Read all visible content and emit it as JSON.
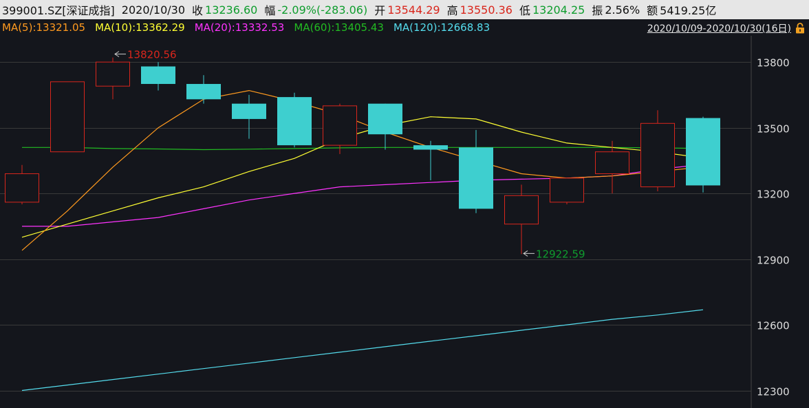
{
  "header": {
    "code": "399001.SZ[深证成指]",
    "date": "2020/10/30",
    "close_label": "收",
    "close_value": "13236.60",
    "change_label": "幅",
    "change_value": "-2.09%(-283.06)",
    "open_label": "开",
    "open_value": "13544.29",
    "high_label": "高",
    "high_value": "13550.36",
    "low_label": "低",
    "low_value": "13204.25",
    "amp_label": "振",
    "amp_value": "2.56%",
    "amount_label": "额",
    "amount_value": "5419.25亿"
  },
  "ma_legend": [
    {
      "text": "MA(5):13321.05",
      "color": "#ff9a1f"
    },
    {
      "text": "MA(10):13362.29",
      "color": "#ffff33"
    },
    {
      "text": "MA(20):13332.53",
      "color": "#ff33ff"
    },
    {
      "text": "MA(60):13405.43",
      "color": "#22bb22"
    },
    {
      "text": "MA(120):12668.83",
      "color": "#55ddee"
    }
  ],
  "range": {
    "text": "2020/10/09-2020/10/30(16日)",
    "icon": "lock-icon"
  },
  "colors": {
    "up": "#d9261c",
    "down": "#3ecfcf",
    "grid": "#3a3a3a",
    "axis_text": "#dddddd",
    "high_marker": "#d9261c",
    "low_marker": "#0f9d2e"
  },
  "chart_data": {
    "type": "candlestick",
    "ylim": [
      12220,
      13920
    ],
    "yticks": [
      12300,
      12600,
      12900,
      13200,
      13500,
      13800
    ],
    "candles": [
      {
        "open": 13160,
        "high": 13330,
        "low": 13150,
        "close": 13290
      },
      {
        "open": 13390,
        "high": 13710,
        "low": 13390,
        "close": 13710
      },
      {
        "open": 13690,
        "high": 13820.56,
        "low": 13630,
        "close": 13800
      },
      {
        "open": 13780,
        "high": 13800,
        "low": 13670,
        "close": 13700
      },
      {
        "open": 13700,
        "high": 13740,
        "low": 13610,
        "close": 13630
      },
      {
        "open": 13610,
        "high": 13650,
        "low": 13450,
        "close": 13540
      },
      {
        "open": 13640,
        "high": 13660,
        "low": 13410,
        "close": 13420
      },
      {
        "open": 13420,
        "high": 13610,
        "low": 13380,
        "close": 13600
      },
      {
        "open": 13610,
        "high": 13610,
        "low": 13400,
        "close": 13470
      },
      {
        "open": 13420,
        "high": 13440,
        "low": 13260,
        "close": 13400
      },
      {
        "open": 13410,
        "high": 13490,
        "low": 13110,
        "close": 13130
      },
      {
        "open": 13060,
        "high": 13240,
        "low": 12922.59,
        "close": 13190
      },
      {
        "open": 13160,
        "high": 13270,
        "low": 13150,
        "close": 13270
      },
      {
        "open": 13290,
        "high": 13440,
        "low": 13200,
        "close": 13390
      },
      {
        "open": 13230,
        "high": 13580,
        "low": 13210,
        "close": 13520
      },
      {
        "open": 13544.29,
        "high": 13550.36,
        "low": 13204.25,
        "close": 13236.6
      }
    ],
    "ma": [
      {
        "name": "MA(5)",
        "color": "#ff9a1f",
        "values": [
          12940,
          13120,
          13320,
          13500,
          13630,
          13670,
          13620,
          13560,
          13480,
          13410,
          13350,
          13290,
          13270,
          13280,
          13300,
          13321.05
        ]
      },
      {
        "name": "MA(10)",
        "color": "#ffff33",
        "values": [
          13000,
          13060,
          13120,
          13180,
          13230,
          13300,
          13360,
          13450,
          13510,
          13550,
          13540,
          13480,
          13430,
          13410,
          13390,
          13362.29
        ]
      },
      {
        "name": "MA(20)",
        "color": "#ff33ff",
        "values": [
          13050,
          13050,
          13070,
          13090,
          13130,
          13170,
          13200,
          13230,
          13240,
          13250,
          13260,
          13265,
          13270,
          13280,
          13310,
          13332.53
        ]
      },
      {
        "name": "MA(60)",
        "color": "#22bb22",
        "values": [
          13410,
          13410,
          13405,
          13403,
          13400,
          13402,
          13405,
          13408,
          13410,
          13410,
          13410,
          13410,
          13410,
          13410,
          13408,
          13405.43
        ]
      },
      {
        "name": "MA(120)",
        "color": "#55ddee",
        "values": [
          12300,
          12325,
          12350,
          12375,
          12400,
          12425,
          12450,
          12475,
          12500,
          12525,
          12550,
          12575,
          12600,
          12625,
          12645,
          12668.83
        ]
      }
    ],
    "annotations": [
      {
        "text": "13820.56",
        "candle_index": 2,
        "kind": "high"
      },
      {
        "text": "12922.59",
        "candle_index": 11,
        "kind": "low"
      }
    ]
  }
}
